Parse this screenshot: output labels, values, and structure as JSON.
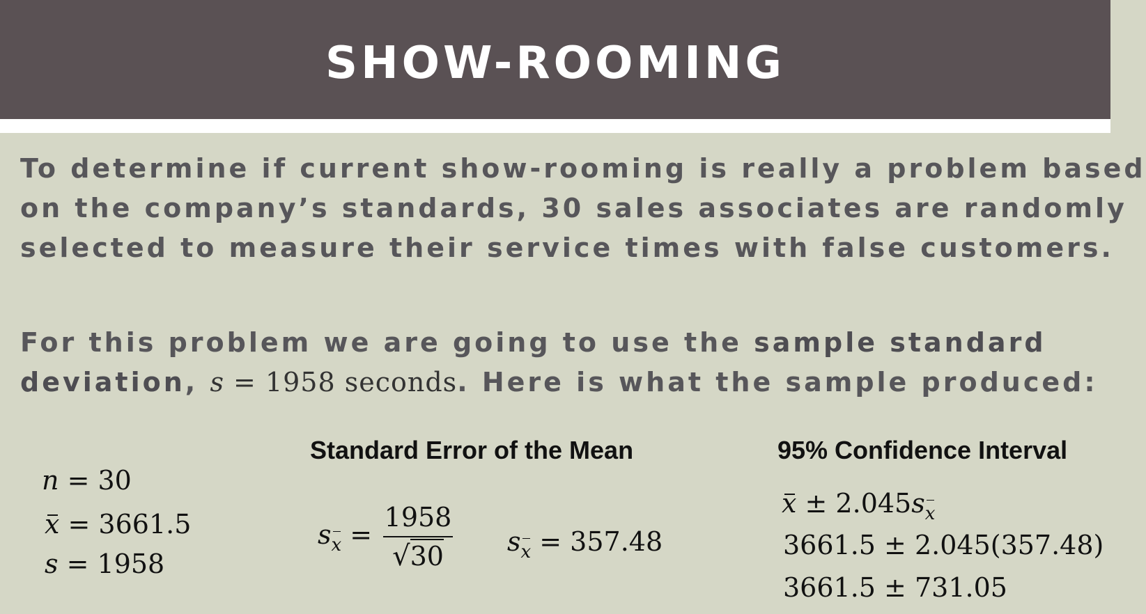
{
  "title": "SHOW-ROOMING",
  "paragraph1": {
    "line1": "To determine if current show-rooming is really a problem based",
    "line2": "on the company’s standards, 30 sales associates are randomly",
    "line3": "selected to measure their service times with false customers."
  },
  "paragraph2": {
    "line1_plain": "For this problem we are going to use the ",
    "line1_bold": "sample standard",
    "line2_bold": "deviation",
    "line2_comma": ", ",
    "line2_var": "s",
    "line2_math": " = 1958 seconds",
    "line2_plain": ". Here is what the sample produced:"
  },
  "givens": {
    "n_var": "n",
    "n_value": " = 30",
    "xbar_var": "x",
    "xbar_value": " = 3661.5",
    "s_var": "s",
    "s_value": " = 1958"
  },
  "standard_error": {
    "heading": "Standard Error of the Mean",
    "formula_lhs_var": "s",
    "formula_lhs_sub": "x",
    "formula_eq": " = ",
    "numerator": "1958",
    "sqrt_symbol": "√",
    "denominator": "30",
    "result_var": "s",
    "result_sub": "x",
    "result_value": " = 357.48"
  },
  "confidence_interval": {
    "heading": "95% Confidence Interval",
    "line1_var": "x",
    "line1_mid": " ± 2.045",
    "line1_s": "s",
    "line1_sub": "x",
    "line2": "3661.5 ± 2.045(357.48)",
    "line3": "3661.5 ± 731.05"
  },
  "colors": {
    "title_bar": "#5a5154",
    "background": "#d5d7c6",
    "body_text": "#57565a"
  }
}
